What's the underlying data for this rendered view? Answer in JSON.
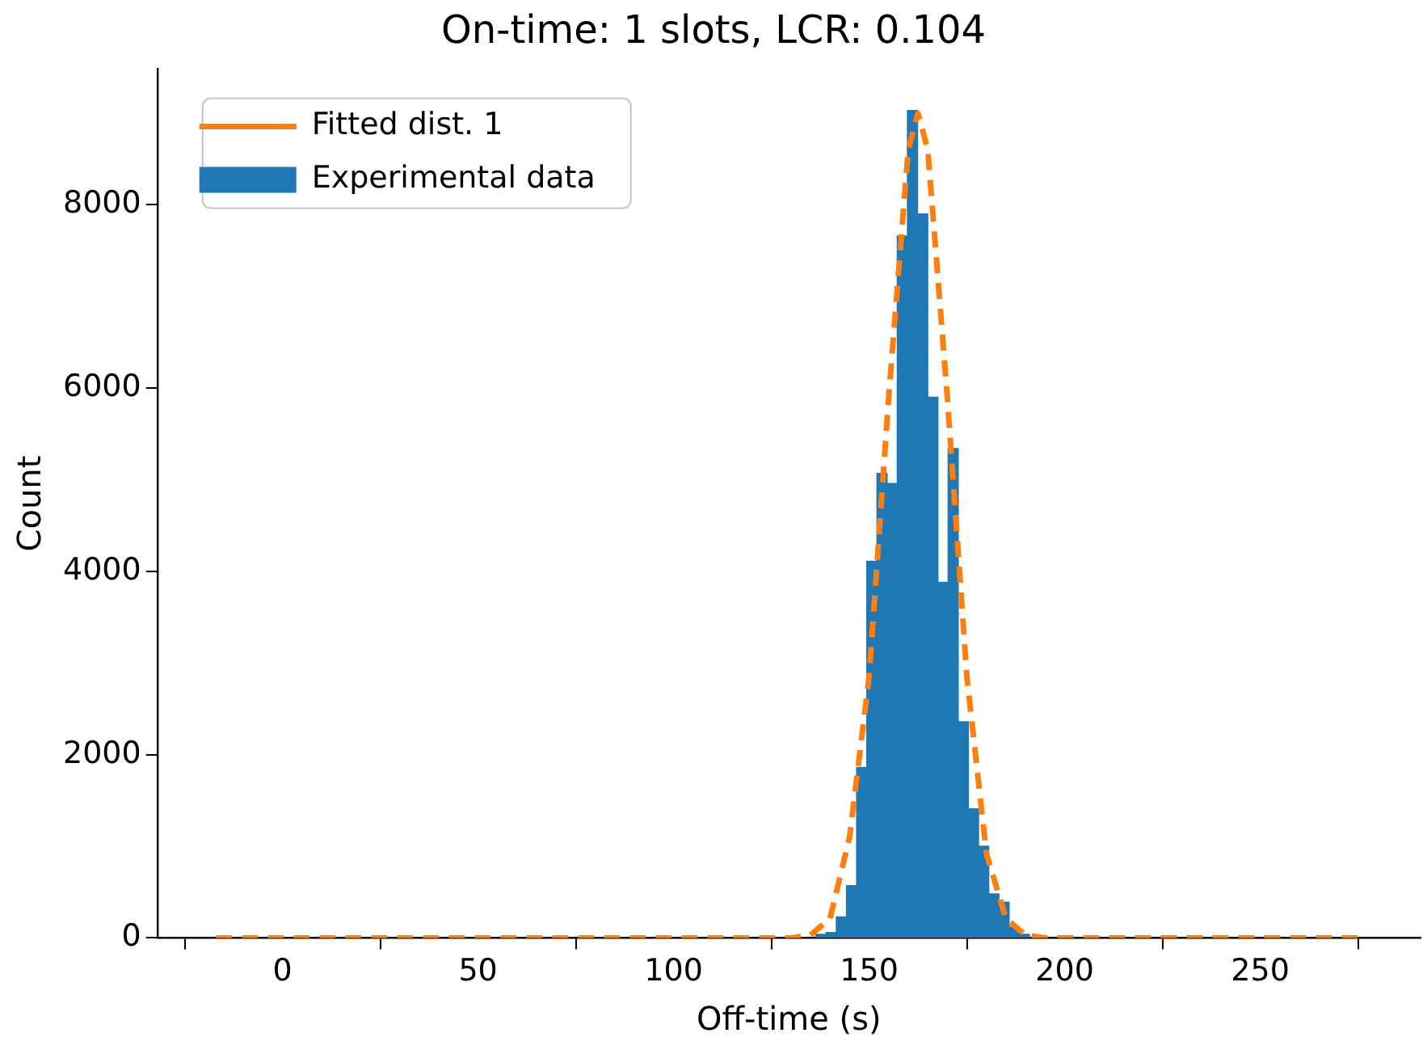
{
  "chart_data": {
    "type": "histogram",
    "title": "On-time: 1 slots, LCR: 0.104",
    "xlabel": "Off-time (s)",
    "ylabel": "Count",
    "xlim": [
      -32,
      291
    ],
    "ylim": [
      0,
      9480
    ],
    "xticks": [
      0,
      50,
      100,
      150,
      200,
      250
    ],
    "yticks": [
      0,
      2000,
      4000,
      6000,
      8000
    ],
    "grid": false,
    "legend": "top left",
    "series": [
      {
        "name": "Fitted dist. 1",
        "type": "line",
        "color": "#ff7f0e",
        "line_style": "dashed",
        "marker": "none",
        "x": [
          -17,
          120,
          130,
          135,
          140,
          145,
          150,
          155,
          160,
          162.5,
          165,
          170,
          175,
          180,
          185,
          190,
          195,
          205,
          276
        ],
        "values": [
          0,
          0,
          0,
          30,
          210,
          1100,
          2850,
          5900,
          8600,
          9000,
          8600,
          5900,
          2850,
          920,
          210,
          30,
          0,
          0,
          0
        ]
      },
      {
        "name": "Experimental data",
        "type": "histogram",
        "color": "#1f77b4",
        "bins": [
          136.4,
          139,
          141.6,
          144.2,
          146.8,
          149.4,
          152,
          154.6,
          157.2,
          159.8,
          162.4,
          165,
          167.6,
          170.2,
          172.8,
          175.4,
          178,
          180.6,
          183.2,
          185.8,
          188.4,
          191
        ],
        "values": [
          40,
          60,
          230,
          570,
          1860,
          4110,
          5070,
          4960,
          7660,
          9030,
          7900,
          5900,
          3880,
          5340,
          2360,
          1410,
          1000,
          480,
          390,
          120,
          40
        ]
      }
    ]
  }
}
